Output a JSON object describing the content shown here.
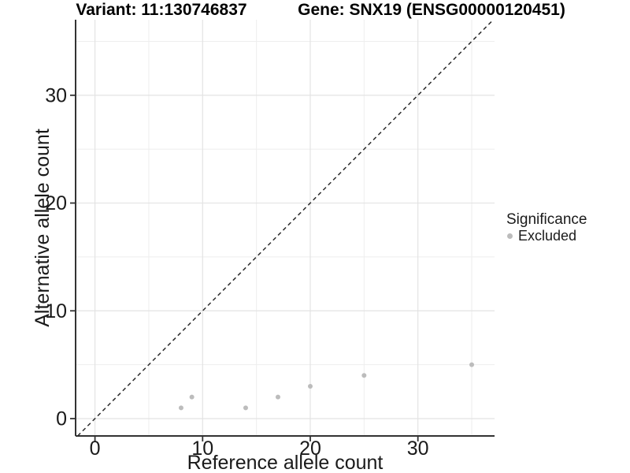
{
  "chart_data": {
    "type": "scatter",
    "title_left": "Variant: 11:130746837",
    "title_right": "Gene: SNX19 (ENSG00000120451)",
    "xlabel": "Reference allele count",
    "ylabel": "Alternative allele count",
    "xlim": [
      -1.8,
      37.12
    ],
    "ylim": [
      -1.61,
      37.01
    ],
    "x_major_ticks": [
      0,
      10,
      20,
      30
    ],
    "y_major_ticks": [
      0,
      10,
      20,
      30
    ],
    "x_minor_gridlines": [
      5,
      15,
      25,
      35
    ],
    "y_minor_gridlines": [
      5,
      15,
      25,
      35
    ],
    "grid": true,
    "legend_position": "right",
    "reference_line": {
      "type": "abline",
      "slope": 1,
      "intercept": 0,
      "style": "dashed",
      "color": "#2b2b2b"
    },
    "series": [
      {
        "name": "Excluded",
        "color": "#bcbcbc",
        "points": [
          [
            8,
            1
          ],
          [
            9,
            2
          ],
          [
            14,
            1
          ],
          [
            17,
            2
          ],
          [
            20,
            3
          ],
          [
            25,
            4
          ],
          [
            35,
            5
          ]
        ]
      }
    ],
    "legend": {
      "title": "Significance",
      "items": [
        {
          "label": "Excluded",
          "color": "#bcbcbc"
        }
      ]
    }
  },
  "colors": {
    "background": "#ffffff",
    "grid_major": "#e3e3e3",
    "grid_minor": "#eeeeee",
    "axis": "#333333",
    "text": "#1a1a1a",
    "title": "#000000"
  }
}
